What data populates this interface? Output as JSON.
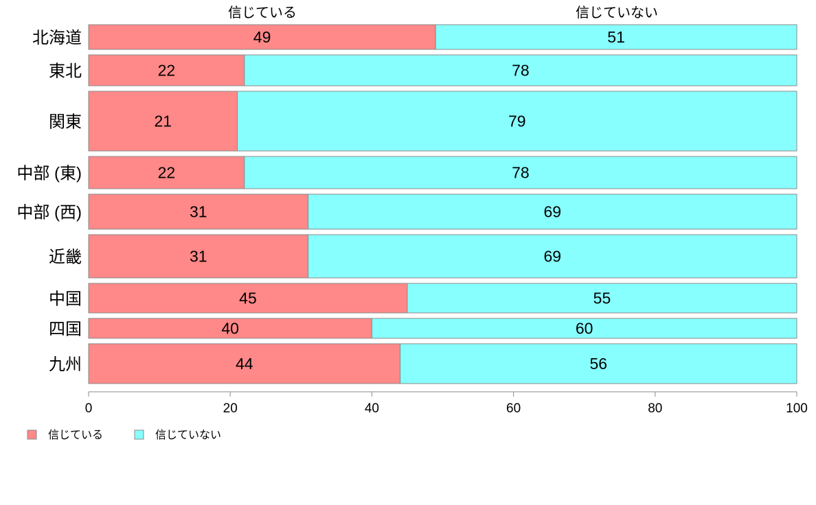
{
  "chart_data": {
    "type": "bar",
    "orientation": "horizontal",
    "stacked": "percent",
    "categories": [
      "北海道",
      "東北",
      "関東",
      "中部 (東)",
      "中部 (西)",
      "近畿",
      "中国",
      "四国",
      "九州"
    ],
    "series": [
      {
        "name": "信じている",
        "values": [
          49,
          22,
          21,
          22,
          31,
          31,
          45,
          40,
          44
        ],
        "color": "#ff8888"
      },
      {
        "name": "信じていない",
        "values": [
          51,
          78,
          79,
          78,
          69,
          69,
          55,
          60,
          56
        ],
        "color": "#88ffff"
      }
    ],
    "xlim": [
      0,
      100
    ],
    "xticks": [
      "0",
      "20",
      "40",
      "60",
      "80",
      "100"
    ],
    "column_headers": [
      "信じている",
      "信じていない"
    ],
    "legend": [
      "信じている",
      "信じていない"
    ],
    "legend_position": "bottom-left",
    "grid": false
  }
}
